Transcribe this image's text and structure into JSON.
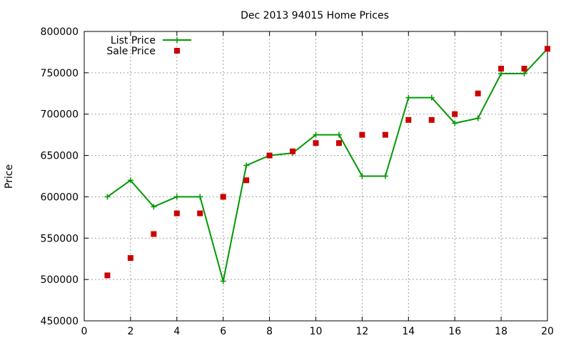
{
  "chart_data": {
    "type": "line",
    "title": "Dec 2013 94015 Home Prices",
    "xlabel": "",
    "ylabel": "Price",
    "xlim": [
      0,
      20
    ],
    "ylim": [
      450000,
      800000
    ],
    "xticks": [
      0,
      2,
      4,
      6,
      8,
      10,
      12,
      14,
      16,
      18,
      20
    ],
    "yticks": [
      450000,
      500000,
      550000,
      600000,
      650000,
      700000,
      750000,
      800000
    ],
    "grid": true,
    "legend_position": "top-left",
    "series": [
      {
        "name": "List Price",
        "style": "line-plus",
        "color": "#009900",
        "x": [
          1,
          2,
          3,
          4,
          5,
          6,
          7,
          8,
          9,
          10,
          11,
          12,
          13,
          14,
          15,
          16,
          17,
          18,
          19,
          20
        ],
        "values": [
          600000,
          620000,
          588000,
          600000,
          600000,
          498000,
          638000,
          650000,
          653000,
          675000,
          675000,
          625000,
          625000,
          720000,
          720000,
          689000,
          695000,
          749000,
          749000,
          779000
        ]
      },
      {
        "name": "Sale Price",
        "style": "square-points",
        "color": "#cc0000",
        "x": [
          1,
          2,
          3,
          4,
          5,
          6,
          7,
          8,
          9,
          10,
          11,
          12,
          13,
          14,
          15,
          16,
          17,
          18,
          19,
          20
        ],
        "values": [
          505000,
          526000,
          555000,
          580000,
          580000,
          600000,
          620000,
          650000,
          655000,
          665000,
          665000,
          675000,
          675000,
          693000,
          693000,
          700000,
          725000,
          755000,
          755000,
          779000
        ]
      }
    ]
  }
}
